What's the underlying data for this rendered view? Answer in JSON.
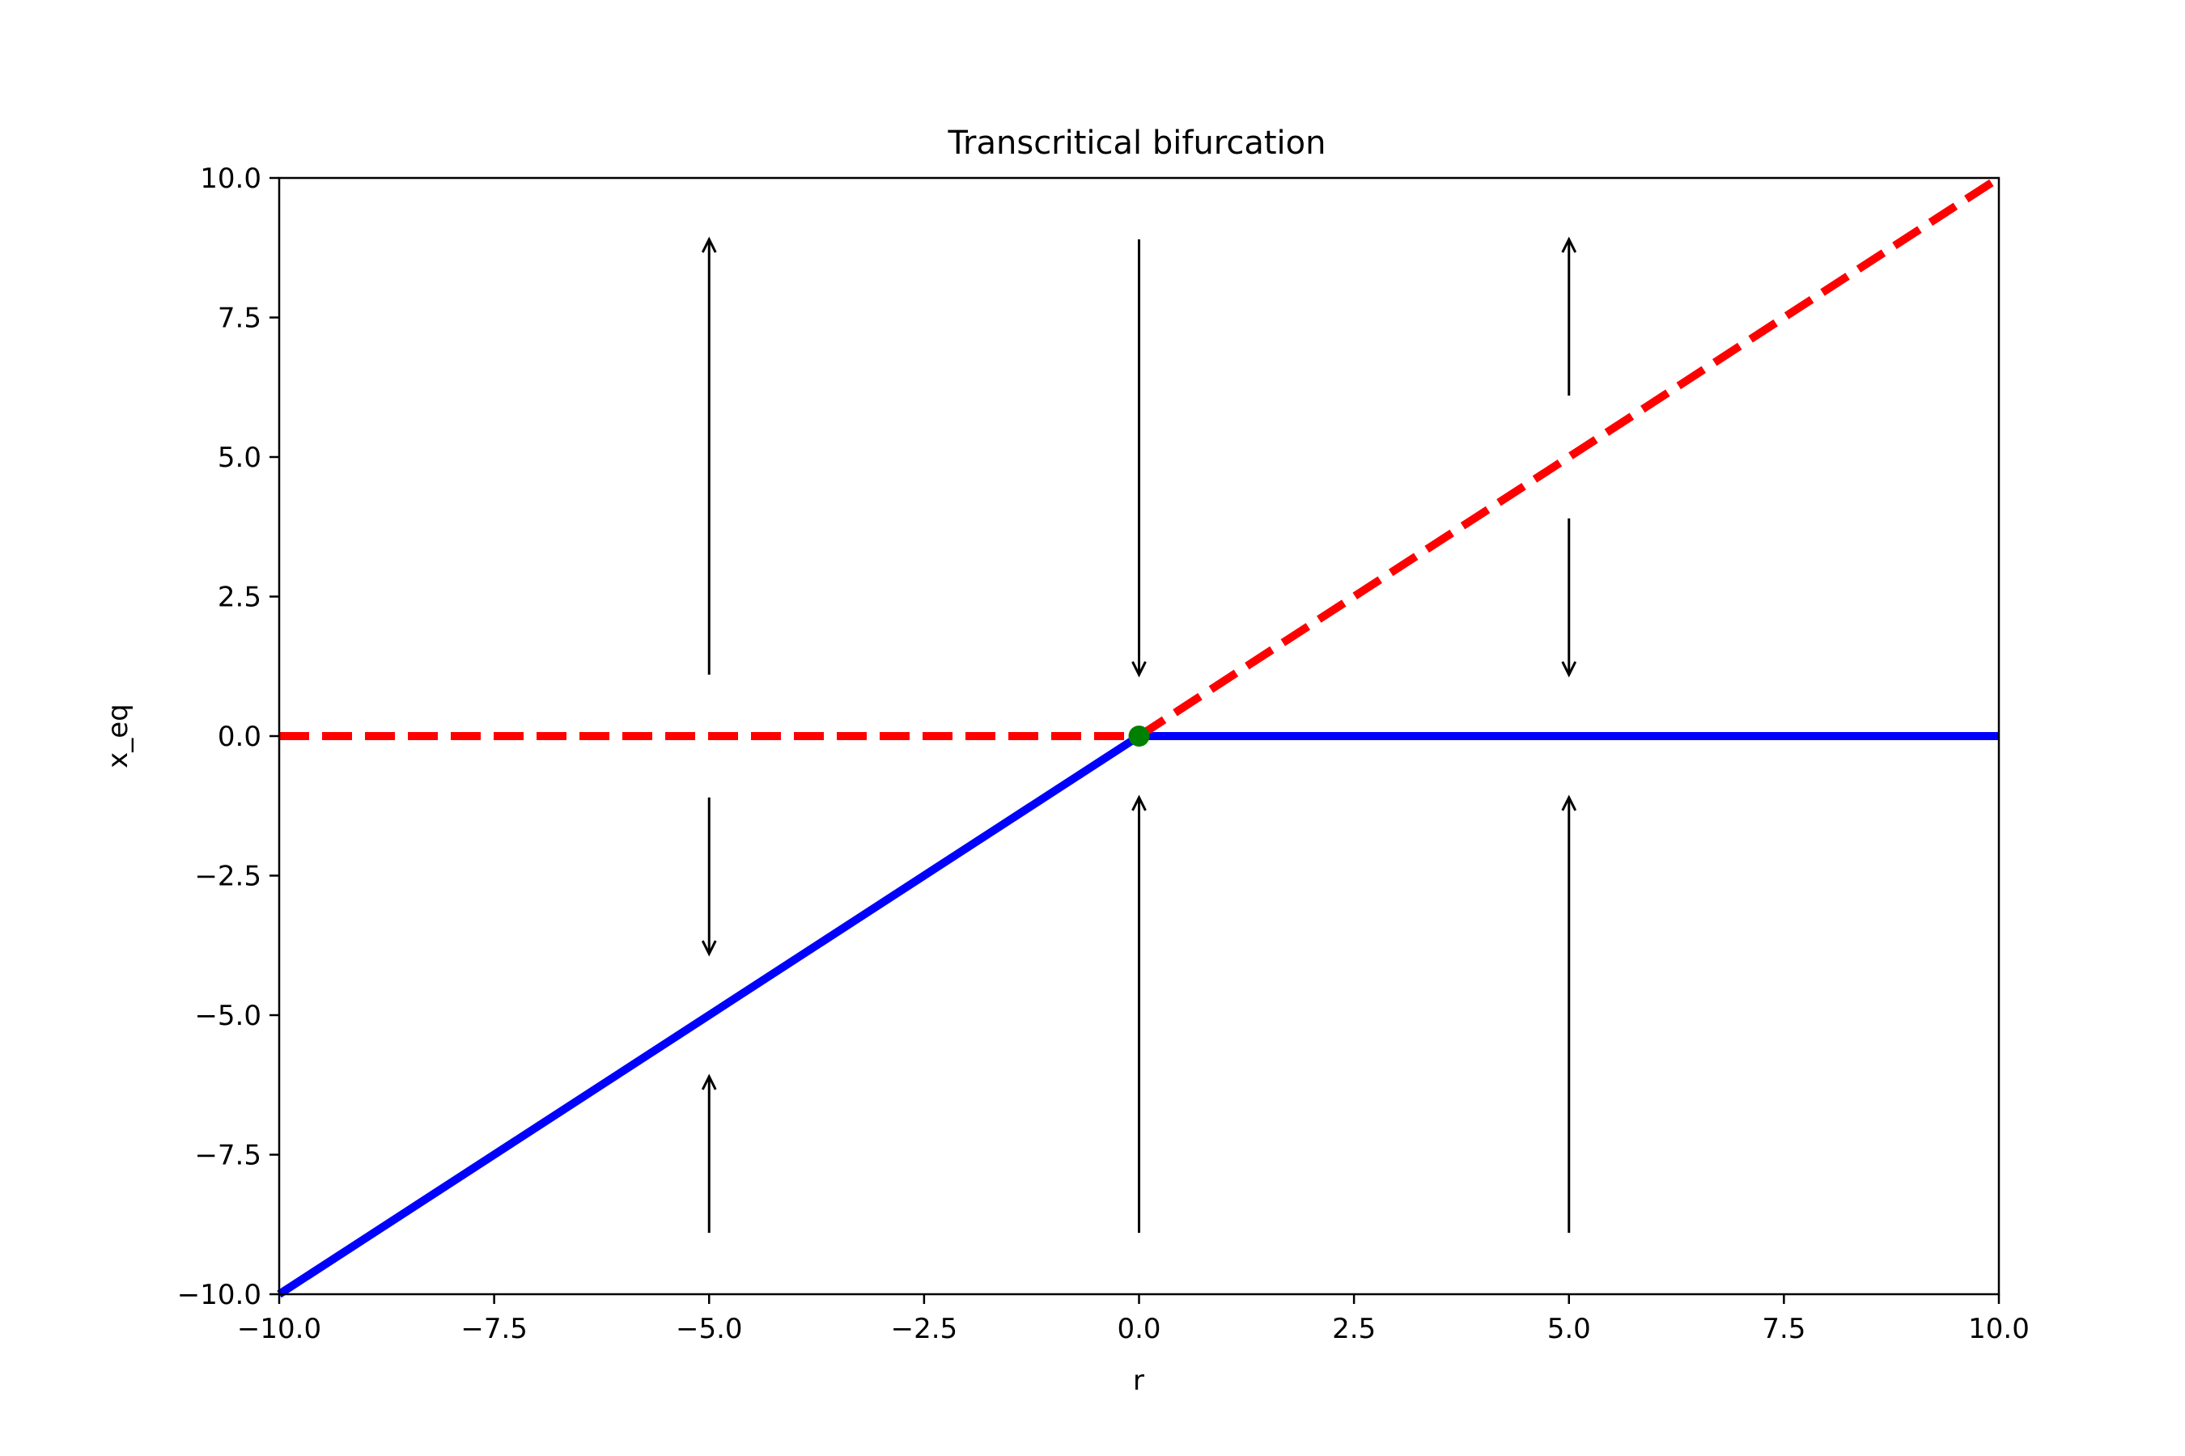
{
  "chart_data": {
    "type": "line",
    "title": "Transcritical bifurcation",
    "xlabel": "r",
    "ylabel": "x_eq",
    "xlim": [
      -10.0,
      10.0
    ],
    "ylim": [
      -10.0,
      10.0
    ],
    "x_ticks": [
      "−10.0",
      "−7.5",
      "−5.0",
      "−2.5",
      "0.0",
      "2.5",
      "5.0",
      "7.5",
      "10.0"
    ],
    "y_ticks": [
      "−10.0",
      "−7.5",
      "−5.0",
      "−2.5",
      "0.0",
      "2.5",
      "5.0",
      "7.5",
      "10.0"
    ],
    "x_tick_values": [
      -10.0,
      -7.5,
      -5.0,
      -2.5,
      0.0,
      2.5,
      5.0,
      7.5,
      10.0
    ],
    "y_tick_values": [
      -10.0,
      -7.5,
      -5.0,
      -2.5,
      0.0,
      2.5,
      5.0,
      7.5,
      10.0
    ],
    "grid": false,
    "series": [
      {
        "color": "#ff0000",
        "style": "dashed",
        "x": [
          -10.0,
          0.0
        ],
        "y": [
          0.0,
          0.0
        ]
      },
      {
        "color": "#0000ff",
        "style": "solid",
        "x": [
          0.0,
          10.0
        ],
        "y": [
          0.0,
          0.0
        ]
      },
      {
        "color": "#0000ff",
        "style": "solid",
        "x": [
          -10.0,
          0.0
        ],
        "y": [
          -10.0,
          0.0
        ]
      },
      {
        "color": "#ff0000",
        "style": "dashed",
        "x": [
          0.0,
          10.0
        ],
        "y": [
          0.0,
          10.0
        ]
      }
    ],
    "points": [
      {
        "x": 0.0,
        "y": 0.0,
        "color": "#008000"
      }
    ],
    "arrows": [
      {
        "x": -5.0,
        "y_from": 1.1,
        "y_to": 8.9
      },
      {
        "x": -5.0,
        "y_from": -1.1,
        "y_to": -3.9
      },
      {
        "x": -5.0,
        "y_from": -8.9,
        "y_to": -6.1
      },
      {
        "x": 0.0,
        "y_from": 8.9,
        "y_to": 1.1
      },
      {
        "x": 0.0,
        "y_from": -8.9,
        "y_to": -1.1
      },
      {
        "x": 5.0,
        "y_from": 6.1,
        "y_to": 8.9
      },
      {
        "x": 5.0,
        "y_from": 3.9,
        "y_to": 1.1
      },
      {
        "x": 5.0,
        "y_from": -8.9,
        "y_to": -1.1
      }
    ]
  }
}
